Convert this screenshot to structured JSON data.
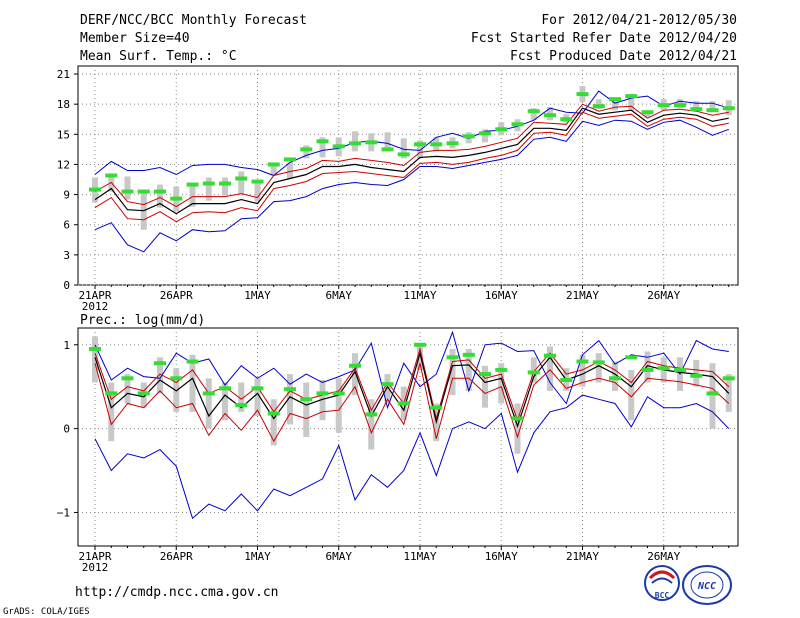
{
  "header": {
    "title": "DERF/NCC/BCC Monthly Forecast",
    "member_size": "Member Size=40",
    "variable": "Mean Surf. Temp.: °C",
    "period": "For 2012/04/21-2012/05/30",
    "started": "Fcst Started Refer Date 2012/04/20",
    "produced": "Fcst Produced Date 2012/04/21"
  },
  "footer": {
    "url": "http://cmdp.ncc.cma.gov.cn",
    "credit": "GrADS: COLA/IGES",
    "logo_bcc": "BCC",
    "logo_ncc": "NCC"
  },
  "colors": {
    "max_min": "#0000cc",
    "spread": "#cc0000",
    "mean": "#000000",
    "box": "#c8c8c8",
    "observed": "#33dd33",
    "grid": "#888888"
  },
  "chart_data": [
    {
      "type": "line",
      "title": "Mean Surf. Temp.: °C",
      "xlabel": "",
      "ylabel": "",
      "x_tick_labels": [
        "21APR",
        "26APR",
        "1MAY",
        "6MAY",
        "11MAY",
        "16MAY",
        "21MAY",
        "26MAY"
      ],
      "x_year_label": "2012",
      "y_ticks": [
        0,
        3,
        6,
        9,
        12,
        15,
        18,
        21
      ],
      "y_tick_labels": [
        "0",
        "3",
        "6",
        "9",
        "12",
        "15",
        "18",
        "21"
      ],
      "ylim": [
        0,
        21.8
      ],
      "days": 40,
      "series": [
        {
          "name": "max",
          "values": [
            11.0,
            12.3,
            11.4,
            11.4,
            11.7,
            11.0,
            11.9,
            12.0,
            12.0,
            11.7,
            11.5,
            10.9,
            12.2,
            12.9,
            13.4,
            13.6,
            14.2,
            14.3,
            14.1,
            13.5,
            13.4,
            14.7,
            15.1,
            14.6,
            15.3,
            15.4,
            15.8,
            16.4,
            17.6,
            17.2,
            17.1,
            19.3,
            18.1,
            18.6,
            18.8,
            17.8,
            18.3,
            18.1,
            18.1,
            17.6
          ]
        },
        {
          "name": "p75",
          "values": [
            9.3,
            10.2,
            8.3,
            8.0,
            8.7,
            7.8,
            8.8,
            8.8,
            8.8,
            9.1,
            8.7,
            10.9,
            11.3,
            11.6,
            12.4,
            12.3,
            12.6,
            12.4,
            12.2,
            11.9,
            13.2,
            13.4,
            13.4,
            13.5,
            13.8,
            14.2,
            14.6,
            16.2,
            16.1,
            16.0,
            18.0,
            17.3,
            17.7,
            17.8,
            16.6,
            17.4,
            17.5,
            17.3,
            16.9,
            17.2
          ]
        },
        {
          "name": "mean",
          "values": [
            8.5,
            9.6,
            7.5,
            7.4,
            8.1,
            7.1,
            8.1,
            8.1,
            8.1,
            8.5,
            8.1,
            10.2,
            10.6,
            11.0,
            11.8,
            11.8,
            12.0,
            11.7,
            11.5,
            11.3,
            12.7,
            12.8,
            12.7,
            12.9,
            13.2,
            13.6,
            14.0,
            15.6,
            15.6,
            15.4,
            17.6,
            17.0,
            17.2,
            17.4,
            16.2,
            16.9,
            17.1,
            16.9,
            16.3,
            16.6
          ]
        },
        {
          "name": "p25",
          "values": [
            7.7,
            8.7,
            6.6,
            6.5,
            7.3,
            6.3,
            7.2,
            7.3,
            7.2,
            7.7,
            7.4,
            9.6,
            9.9,
            10.3,
            11.1,
            11.2,
            11.3,
            11.1,
            10.9,
            10.7,
            12.1,
            12.2,
            12.0,
            12.2,
            12.6,
            12.9,
            13.4,
            15.1,
            15.2,
            14.9,
            17.2,
            16.6,
            16.8,
            17.0,
            15.8,
            16.5,
            16.7,
            16.5,
            15.8,
            16.1
          ]
        },
        {
          "name": "min",
          "values": [
            5.5,
            6.2,
            4.0,
            3.3,
            5.2,
            4.4,
            5.5,
            5.3,
            5.4,
            6.6,
            6.7,
            8.3,
            8.4,
            8.8,
            9.6,
            10.0,
            10.2,
            10.0,
            9.9,
            10.5,
            11.8,
            11.8,
            11.6,
            11.9,
            12.2,
            12.5,
            12.9,
            14.5,
            14.7,
            14.3,
            16.3,
            15.9,
            16.4,
            16.3,
            15.5,
            16.2,
            16.4,
            15.7,
            14.9,
            15.5
          ]
        },
        {
          "name": "box_top",
          "values": [
            10.7,
            11.1,
            10.8,
            9.5,
            10.0,
            9.8,
            10.0,
            10.7,
            10.7,
            11.3,
            10.3,
            12.0,
            12.2,
            13.9,
            14.7,
            14.7,
            15.3,
            15.1,
            15.2,
            14.6,
            14.4,
            14.7,
            14.7,
            15.2,
            15.5,
            16.2,
            16.5,
            17.6,
            17.7,
            17.0,
            19.8,
            18.5,
            18.4,
            19.0,
            17.2,
            18.5,
            18.5,
            18.3,
            18.3,
            18.4
          ]
        },
        {
          "name": "box_bottom",
          "values": [
            8.2,
            9.3,
            8.5,
            5.5,
            7.7,
            7.3,
            7.8,
            8.4,
            8.9,
            9.1,
            8.3,
            10.9,
            10.6,
            12.6,
            12.7,
            12.8,
            13.3,
            13.3,
            13.6,
            12.6,
            12.6,
            13.3,
            13.6,
            14.1,
            14.2,
            14.9,
            15.3,
            16.4,
            16.4,
            16.2,
            18.2,
            17.5,
            17.4,
            17.3,
            16.7,
            17.4,
            17.6,
            17.4,
            17.3,
            16.9
          ]
        },
        {
          "name": "observed",
          "values": [
            9.5,
            10.9,
            9.3,
            9.3,
            9.3,
            8.6,
            10.0,
            10.1,
            10.1,
            10.6,
            10.3,
            12.0,
            12.5,
            13.5,
            14.3,
            13.8,
            14.1,
            14.2,
            13.5,
            13.0,
            14.0,
            14.0,
            14.1,
            14.8,
            15.1,
            15.5,
            16.0,
            17.3,
            16.9,
            16.5,
            19.0,
            17.8,
            18.5,
            18.8,
            17.2,
            17.9,
            17.9,
            17.5,
            17.4,
            17.6
          ]
        }
      ]
    },
    {
      "type": "line",
      "title": "Prec.: log(mm/d)",
      "xlabel": "",
      "ylabel": "",
      "x_tick_labels": [
        "21APR",
        "26APR",
        "1MAY",
        "6MAY",
        "11MAY",
        "16MAY",
        "21MAY",
        "26MAY"
      ],
      "x_year_label": "2012",
      "y_ticks": [
        -1,
        0,
        1
      ],
      "y_tick_labels": [
        "−1",
        "0",
        "1"
      ],
      "ylim": [
        -1.4,
        1.2
      ],
      "days": 40,
      "series": [
        {
          "name": "max",
          "values": [
            1.0,
            0.58,
            0.72,
            0.62,
            0.6,
            0.9,
            0.78,
            0.83,
            0.52,
            0.75,
            0.6,
            0.72,
            0.53,
            0.65,
            0.55,
            0.62,
            0.7,
            1.02,
            0.25,
            0.78,
            0.5,
            0.65,
            1.15,
            0.45,
            1.0,
            1.02,
            0.92,
            0.93,
            0.55,
            0.3,
            0.88,
            1.05,
            0.77,
            0.88,
            0.85,
            0.9,
            0.65,
            1.05,
            0.95,
            0.92
          ]
        },
        {
          "name": "p75",
          "values": [
            0.9,
            0.35,
            0.5,
            0.45,
            0.65,
            0.55,
            0.7,
            0.42,
            0.5,
            0.35,
            0.5,
            0.2,
            0.45,
            0.35,
            0.4,
            0.45,
            0.72,
            0.22,
            0.55,
            0.3,
            0.95,
            0.12,
            0.8,
            0.82,
            0.6,
            0.65,
            0.1,
            0.68,
            0.9,
            0.65,
            0.7,
            0.8,
            0.7,
            0.55,
            0.8,
            0.75,
            0.72,
            0.7,
            0.68,
            0.5
          ]
        },
        {
          "name": "mean",
          "values": [
            0.85,
            0.25,
            0.42,
            0.38,
            0.58,
            0.45,
            0.6,
            0.15,
            0.4,
            0.25,
            0.42,
            0.12,
            0.38,
            0.28,
            0.35,
            0.4,
            0.68,
            0.15,
            0.5,
            0.22,
            0.9,
            0.08,
            0.75,
            0.76,
            0.55,
            0.6,
            0.03,
            0.62,
            0.85,
            0.58,
            0.65,
            0.75,
            0.65,
            0.5,
            0.75,
            0.7,
            0.67,
            0.65,
            0.62,
            0.42
          ]
        },
        {
          "name": "p25",
          "values": [
            0.78,
            0.05,
            0.3,
            0.25,
            0.45,
            0.25,
            0.3,
            -0.08,
            0.18,
            -0.02,
            0.22,
            -0.15,
            0.18,
            0.12,
            0.2,
            0.22,
            0.5,
            -0.05,
            0.35,
            0.05,
            0.78,
            -0.12,
            0.6,
            0.6,
            0.42,
            0.5,
            -0.1,
            0.52,
            0.7,
            0.48,
            0.55,
            0.6,
            0.55,
            0.38,
            0.6,
            0.58,
            0.56,
            0.52,
            0.48,
            0.3
          ]
        },
        {
          "name": "min",
          "values": [
            -0.12,
            -0.5,
            -0.3,
            -0.35,
            -0.25,
            -0.45,
            -1.07,
            -0.9,
            -0.98,
            -0.78,
            -0.98,
            -0.72,
            -0.8,
            -0.7,
            -0.6,
            -0.2,
            -0.85,
            -0.55,
            -0.7,
            -0.5,
            -0.05,
            -0.56,
            0.0,
            0.08,
            0.0,
            0.18,
            -0.52,
            -0.05,
            0.2,
            0.25,
            0.4,
            0.35,
            0.3,
            0.02,
            0.38,
            0.25,
            0.25,
            0.3,
            0.2,
            0.0
          ]
        },
        {
          "name": "box_top",
          "values": [
            1.1,
            0.55,
            0.65,
            0.55,
            0.85,
            0.72,
            0.88,
            0.6,
            0.55,
            0.55,
            0.6,
            0.35,
            0.65,
            0.55,
            0.58,
            0.6,
            0.9,
            0.35,
            0.65,
            0.5,
            1.0,
            0.3,
            0.95,
            0.95,
            0.75,
            0.78,
            0.3,
            0.85,
            0.98,
            0.72,
            0.88,
            0.9,
            0.8,
            0.7,
            0.92,
            0.85,
            0.85,
            0.82,
            0.78,
            0.65
          ]
        },
        {
          "name": "box_bottom",
          "values": [
            0.55,
            -0.15,
            0.3,
            0.25,
            0.42,
            0.2,
            0.2,
            0.0,
            0.1,
            0.2,
            0.15,
            -0.2,
            0.05,
            -0.1,
            0.1,
            -0.05,
            0.4,
            -0.25,
            0.3,
            0.1,
            0.7,
            -0.15,
            0.4,
            0.45,
            0.25,
            0.3,
            -0.3,
            0.55,
            0.45,
            0.45,
            0.5,
            0.55,
            0.45,
            0.1,
            0.55,
            0.55,
            0.45,
            0.5,
            0.0,
            0.2
          ]
        },
        {
          "name": "observed",
          "values": [
            0.95,
            0.42,
            0.6,
            0.42,
            0.78,
            0.6,
            0.8,
            0.42,
            0.48,
            0.28,
            0.48,
            0.18,
            0.47,
            0.35,
            0.42,
            0.42,
            0.75,
            0.17,
            0.53,
            0.3,
            1.0,
            0.25,
            0.85,
            0.88,
            0.65,
            0.7,
            0.12,
            0.67,
            0.87,
            0.58,
            0.8,
            0.79,
            0.6,
            0.85,
            0.7,
            0.72,
            0.7,
            0.63,
            0.42,
            0.6
          ]
        }
      ]
    }
  ]
}
